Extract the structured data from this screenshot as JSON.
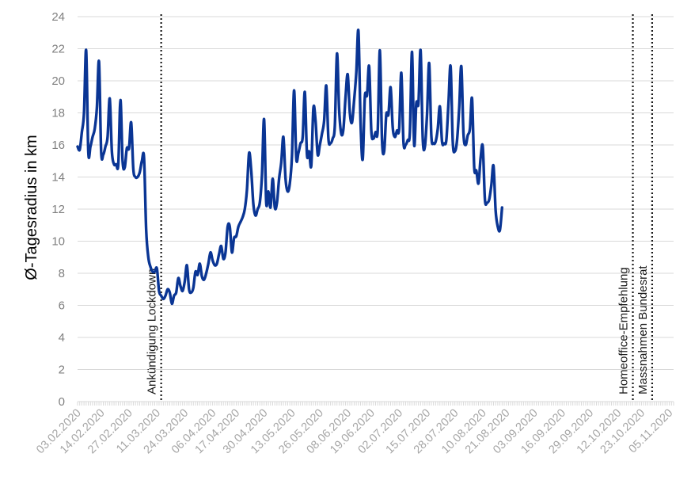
{
  "chart_data": {
    "type": "line",
    "ylabel": "Ø-Tagesradius in km",
    "ylim": [
      0,
      24
    ],
    "yticks": [
      0,
      2,
      4,
      6,
      8,
      10,
      12,
      14,
      16,
      18,
      20,
      22,
      24
    ],
    "x_range": [
      "2020-02-03",
      "2020-11-07"
    ],
    "xtick_dates": [
      "2020-02-03",
      "2020-02-14",
      "2020-02-27",
      "2020-03-11",
      "2020-03-24",
      "2020-04-06",
      "2020-04-17",
      "2020-04-30",
      "2020-05-13",
      "2020-05-26",
      "2020-06-08",
      "2020-06-19",
      "2020-07-02",
      "2020-07-15",
      "2020-07-28",
      "2020-08-10",
      "2020-08-21",
      "2020-09-03",
      "2020-09-16",
      "2020-09-29",
      "2020-10-12",
      "2020-10-23",
      "2020-11-05"
    ],
    "xtick_labels": [
      "03.02.2020",
      "14.02.2020",
      "27.02.2020",
      "11.03.2020",
      "24.03.2020",
      "06.04.2020",
      "17.04.2020",
      "30.04.2020",
      "13.05.2020",
      "26.05.2020",
      "08.06.2020",
      "19.06.2020",
      "02.07.2020",
      "15.07.2020",
      "28.07.2020",
      "10.08.2020",
      "21.08.2020",
      "03.09.2020",
      "16.09.2020",
      "29.09.2020",
      "12.10.2020",
      "23.10.2020",
      "05.11.2020"
    ],
    "grid": "horizontal",
    "line_color": "#0a3594",
    "annotation_color": "#1a1a1a",
    "annotations": [
      {
        "date": "2020-03-13",
        "label": "Ankündigung Lockdown"
      },
      {
        "date": "2020-10-19",
        "label": "Homeoffice-Empfehlung"
      },
      {
        "date": "2020-10-28",
        "label": "Massnahmen Bundesrat"
      }
    ],
    "series": [
      {
        "points": [
          [
            "2020-02-03",
            15.9
          ],
          [
            "2020-02-04",
            15.7
          ],
          [
            "2020-02-05",
            16.8
          ],
          [
            "2020-02-06",
            18.0
          ],
          [
            "2020-02-07",
            21.9
          ],
          [
            "2020-02-08",
            15.6
          ],
          [
            "2020-02-09",
            15.9
          ],
          [
            "2020-02-10",
            16.5
          ],
          [
            "2020-02-11",
            17.0
          ],
          [
            "2020-02-12",
            18.3
          ],
          [
            "2020-02-13",
            21.2
          ],
          [
            "2020-02-14",
            15.6
          ],
          [
            "2020-02-15",
            15.4
          ],
          [
            "2020-02-16",
            15.9
          ],
          [
            "2020-02-17",
            16.5
          ],
          [
            "2020-02-18",
            18.9
          ],
          [
            "2020-02-19",
            15.6
          ],
          [
            "2020-02-20",
            14.8
          ],
          [
            "2020-02-21",
            14.8
          ],
          [
            "2020-02-22",
            14.8
          ],
          [
            "2020-02-23",
            18.8
          ],
          [
            "2020-02-24",
            15.0
          ],
          [
            "2020-02-25",
            14.6
          ],
          [
            "2020-02-26",
            15.8
          ],
          [
            "2020-02-27",
            15.8
          ],
          [
            "2020-02-28",
            17.4
          ],
          [
            "2020-02-29",
            14.5
          ],
          [
            "2020-03-01",
            14.0
          ],
          [
            "2020-03-02",
            14.0
          ],
          [
            "2020-03-03",
            14.3
          ],
          [
            "2020-03-04",
            15.0
          ],
          [
            "2020-03-05",
            15.2
          ],
          [
            "2020-03-06",
            10.7
          ],
          [
            "2020-03-07",
            9.0
          ],
          [
            "2020-03-08",
            8.4
          ],
          [
            "2020-03-09",
            8.1
          ],
          [
            "2020-03-10",
            8.1
          ],
          [
            "2020-03-11",
            8.3
          ],
          [
            "2020-03-12",
            6.9
          ],
          [
            "2020-03-13",
            6.6
          ],
          [
            "2020-03-14",
            6.4
          ],
          [
            "2020-03-15",
            6.6
          ],
          [
            "2020-03-16",
            7.0
          ],
          [
            "2020-03-17",
            6.8
          ],
          [
            "2020-03-18",
            6.1
          ],
          [
            "2020-03-19",
            6.6
          ],
          [
            "2020-03-20",
            6.8
          ],
          [
            "2020-03-21",
            7.7
          ],
          [
            "2020-03-22",
            7.2
          ],
          [
            "2020-03-23",
            6.9
          ],
          [
            "2020-03-24",
            7.5
          ],
          [
            "2020-03-25",
            8.5
          ],
          [
            "2020-03-26",
            7.0
          ],
          [
            "2020-03-27",
            6.8
          ],
          [
            "2020-03-28",
            7.1
          ],
          [
            "2020-03-29",
            8.1
          ],
          [
            "2020-03-30",
            7.9
          ],
          [
            "2020-03-31",
            8.6
          ],
          [
            "2020-04-01",
            7.8
          ],
          [
            "2020-04-02",
            7.6
          ],
          [
            "2020-04-03",
            8.0
          ],
          [
            "2020-04-04",
            8.6
          ],
          [
            "2020-04-05",
            9.3
          ],
          [
            "2020-04-06",
            8.8
          ],
          [
            "2020-04-07",
            8.5
          ],
          [
            "2020-04-08",
            8.6
          ],
          [
            "2020-04-09",
            9.2
          ],
          [
            "2020-04-10",
            9.7
          ],
          [
            "2020-04-11",
            8.9
          ],
          [
            "2020-04-12",
            9.3
          ],
          [
            "2020-04-13",
            10.9
          ],
          [
            "2020-04-14",
            10.9
          ],
          [
            "2020-04-15",
            9.3
          ],
          [
            "2020-04-16",
            10.2
          ],
          [
            "2020-04-17",
            10.3
          ],
          [
            "2020-04-18",
            10.9
          ],
          [
            "2020-04-19",
            11.2
          ],
          [
            "2020-04-20",
            11.5
          ],
          [
            "2020-04-21",
            12.0
          ],
          [
            "2020-04-22",
            13.2
          ],
          [
            "2020-04-23",
            15.5
          ],
          [
            "2020-04-24",
            14.4
          ],
          [
            "2020-04-25",
            12.3
          ],
          [
            "2020-04-26",
            11.6
          ],
          [
            "2020-04-27",
            12.0
          ],
          [
            "2020-04-28",
            12.4
          ],
          [
            "2020-04-29",
            14.1
          ],
          [
            "2020-04-30",
            17.6
          ],
          [
            "2020-05-01",
            12.4
          ],
          [
            "2020-05-02",
            13.1
          ],
          [
            "2020-05-03",
            12.1
          ],
          [
            "2020-05-04",
            13.9
          ],
          [
            "2020-05-05",
            12.1
          ],
          [
            "2020-05-06",
            12.4
          ],
          [
            "2020-05-07",
            13.9
          ],
          [
            "2020-05-08",
            14.9
          ],
          [
            "2020-05-09",
            16.5
          ],
          [
            "2020-05-10",
            13.9
          ],
          [
            "2020-05-11",
            13.1
          ],
          [
            "2020-05-12",
            13.6
          ],
          [
            "2020-05-13",
            15.3
          ],
          [
            "2020-05-14",
            19.4
          ],
          [
            "2020-05-15",
            15.2
          ],
          [
            "2020-05-16",
            15.5
          ],
          [
            "2020-05-17",
            16.1
          ],
          [
            "2020-05-18",
            16.5
          ],
          [
            "2020-05-19",
            19.3
          ],
          [
            "2020-05-20",
            15.4
          ],
          [
            "2020-05-21",
            15.6
          ],
          [
            "2020-05-22",
            14.7
          ],
          [
            "2020-05-23",
            18.3
          ],
          [
            "2020-05-24",
            17.5
          ],
          [
            "2020-05-25",
            15.4
          ],
          [
            "2020-05-26",
            16.0
          ],
          [
            "2020-05-27",
            16.7
          ],
          [
            "2020-05-28",
            17.5
          ],
          [
            "2020-05-29",
            19.7
          ],
          [
            "2020-05-30",
            16.4
          ],
          [
            "2020-05-31",
            16.1
          ],
          [
            "2020-06-01",
            16.4
          ],
          [
            "2020-06-02",
            17.2
          ],
          [
            "2020-06-03",
            21.7
          ],
          [
            "2020-06-04",
            18.2
          ],
          [
            "2020-06-05",
            16.7
          ],
          [
            "2020-06-06",
            17.0
          ],
          [
            "2020-06-07",
            19.0
          ],
          [
            "2020-06-08",
            20.4
          ],
          [
            "2020-06-09",
            18.0
          ],
          [
            "2020-06-10",
            17.4
          ],
          [
            "2020-06-11",
            18.8
          ],
          [
            "2020-06-12",
            20.5
          ],
          [
            "2020-06-13",
            23.1
          ],
          [
            "2020-06-14",
            17.4
          ],
          [
            "2020-06-15",
            15.1
          ],
          [
            "2020-06-16",
            19.0
          ],
          [
            "2020-06-17",
            19.1
          ],
          [
            "2020-06-18",
            20.9
          ],
          [
            "2020-06-19",
            16.9
          ],
          [
            "2020-06-20",
            16.4
          ],
          [
            "2020-06-21",
            16.8
          ],
          [
            "2020-06-22",
            16.9
          ],
          [
            "2020-06-23",
            21.9
          ],
          [
            "2020-06-24",
            16.3
          ],
          [
            "2020-06-25",
            15.6
          ],
          [
            "2020-06-26",
            17.9
          ],
          [
            "2020-06-27",
            17.9
          ],
          [
            "2020-06-28",
            19.6
          ],
          [
            "2020-06-29",
            17.1
          ],
          [
            "2020-06-30",
            16.5
          ],
          [
            "2020-07-01",
            16.9
          ],
          [
            "2020-07-02",
            17.0
          ],
          [
            "2020-07-03",
            20.5
          ],
          [
            "2020-07-04",
            16.2
          ],
          [
            "2020-07-05",
            16.0
          ],
          [
            "2020-07-06",
            16.3
          ],
          [
            "2020-07-07",
            16.8
          ],
          [
            "2020-07-08",
            21.8
          ],
          [
            "2020-07-09",
            16.0
          ],
          [
            "2020-07-10",
            18.6
          ],
          [
            "2020-07-11",
            18.6
          ],
          [
            "2020-07-12",
            21.9
          ],
          [
            "2020-07-13",
            16.4
          ],
          [
            "2020-07-14",
            15.9
          ],
          [
            "2020-07-15",
            17.9
          ],
          [
            "2020-07-16",
            21.1
          ],
          [
            "2020-07-17",
            16.6
          ],
          [
            "2020-07-18",
            16.1
          ],
          [
            "2020-07-19",
            16.2
          ],
          [
            "2020-07-20",
            17.0
          ],
          [
            "2020-07-21",
            18.4
          ],
          [
            "2020-07-22",
            16.2
          ],
          [
            "2020-07-23",
            16.1
          ],
          [
            "2020-07-24",
            16.3
          ],
          [
            "2020-07-25",
            18.6
          ],
          [
            "2020-07-26",
            20.9
          ],
          [
            "2020-07-27",
            16.2
          ],
          [
            "2020-07-28",
            15.6
          ],
          [
            "2020-07-29",
            16.3
          ],
          [
            "2020-07-30",
            18.3
          ],
          [
            "2020-07-31",
            20.9
          ],
          [
            "2020-08-01",
            16.7
          ],
          [
            "2020-08-02",
            16.0
          ],
          [
            "2020-08-03",
            16.6
          ],
          [
            "2020-08-04",
            17.0
          ],
          [
            "2020-08-05",
            18.9
          ],
          [
            "2020-08-06",
            14.6
          ],
          [
            "2020-08-07",
            14.4
          ],
          [
            "2020-08-08",
            13.6
          ],
          [
            "2020-08-09",
            15.2
          ],
          [
            "2020-08-10",
            15.9
          ],
          [
            "2020-08-11",
            12.6
          ],
          [
            "2020-08-12",
            12.4
          ],
          [
            "2020-08-13",
            12.6
          ],
          [
            "2020-08-14",
            13.5
          ],
          [
            "2020-08-15",
            14.7
          ],
          [
            "2020-08-16",
            11.9
          ],
          [
            "2020-08-17",
            10.9
          ],
          [
            "2020-08-18",
            10.7
          ],
          [
            "2020-08-19",
            12.1
          ]
        ]
      }
    ]
  }
}
